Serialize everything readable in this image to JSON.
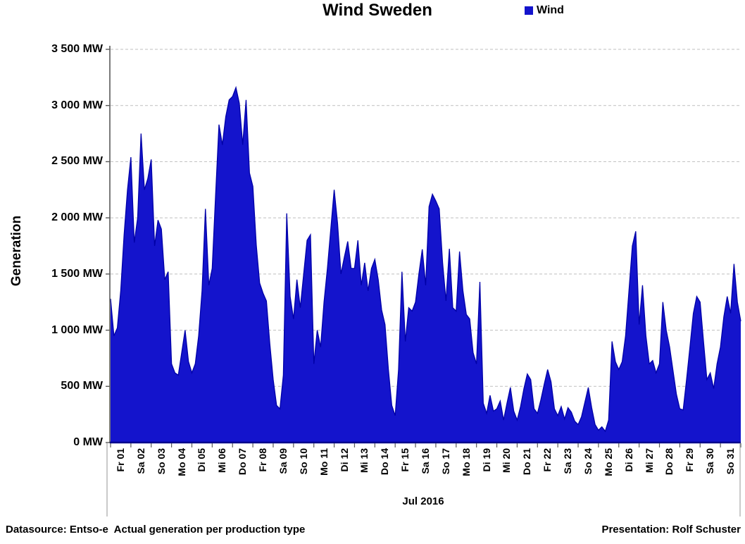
{
  "header": {
    "title": "Wind Sweden"
  },
  "legend": {
    "items": [
      {
        "label": "Wind",
        "color": "#1414CC"
      }
    ]
  },
  "chart_data": {
    "type": "area",
    "title": "Wind Sweden",
    "series": [
      {
        "name": "Wind",
        "color": "#1414CC"
      }
    ],
    "ylabel": "Generation",
    "xlabel": "",
    "unit": "MW",
    "ylim": [
      0,
      3500
    ],
    "y_tick_step": 500,
    "y_tick_labels": [
      "0 MW",
      "500 MW",
      "1 000 MW",
      "1 500 MW",
      "2 000 MW",
      "2 500 MW",
      "3 000 MW",
      "3 500 MW"
    ],
    "x_categories": [
      "Fr 01",
      "Sa 02",
      "So 03",
      "Mo 04",
      "Di 05",
      "Mi 06",
      "Do 07",
      "Fr 08",
      "Sa 09",
      "So 10",
      "Mo 11",
      "Di 12",
      "Mi 13",
      "Do 14",
      "Fr 15",
      "Sa 16",
      "So 17",
      "Mo 18",
      "Di 19",
      "Mi 20",
      "Do 21",
      "Fr 22",
      "Sa 23",
      "So 24",
      "Mo 25",
      "Di 26",
      "Mi 27",
      "Do 28",
      "Fr 29",
      "Sa 30",
      "So 31"
    ],
    "x_axis_group_label": "Jul 2016",
    "grid": "horizontal-dashed",
    "legend_position": "top-right",
    "sampling_hours_per_point": 4,
    "values_mw": [
      1280,
      950,
      1020,
      1350,
      1850,
      2250,
      2540,
      1780,
      2000,
      2750,
      2250,
      2350,
      2520,
      1750,
      1980,
      1900,
      1450,
      1520,
      700,
      620,
      600,
      800,
      1000,
      720,
      620,
      700,
      950,
      1350,
      2080,
      1400,
      1550,
      2200,
      2830,
      2650,
      2900,
      3050,
      3080,
      3160,
      3020,
      2650,
      3050,
      2400,
      2280,
      1760,
      1420,
      1330,
      1260,
      880,
      560,
      330,
      300,
      600,
      2040,
      1300,
      1100,
      1450,
      1200,
      1500,
      1800,
      1850,
      700,
      1000,
      850,
      1250,
      1550,
      1900,
      2250,
      1950,
      1500,
      1650,
      1790,
      1550,
      1550,
      1800,
      1400,
      1600,
      1350,
      1550,
      1630,
      1450,
      1180,
      1050,
      650,
      330,
      240,
      650,
      1520,
      900,
      1200,
      1170,
      1250,
      1500,
      1720,
      1400,
      2100,
      2210,
      2150,
      2080,
      1600,
      1260,
      1725,
      1200,
      1170,
      1700,
      1350,
      1140,
      1100,
      800,
      700,
      1430,
      350,
      260,
      420,
      280,
      300,
      370,
      200,
      350,
      490,
      280,
      200,
      320,
      480,
      610,
      560,
      300,
      260,
      380,
      520,
      650,
      540,
      300,
      240,
      320,
      210,
      310,
      270,
      190,
      160,
      230,
      360,
      490,
      310,
      160,
      110,
      140,
      100,
      200,
      900,
      720,
      650,
      720,
      950,
      1350,
      1750,
      1880,
      1050,
      1400,
      950,
      700,
      730,
      620,
      700,
      1250,
      1000,
      850,
      640,
      430,
      300,
      290,
      560,
      850,
      1150,
      1300,
      1250,
      900,
      560,
      620,
      480,
      700,
      850,
      1120,
      1300,
      1150,
      1590,
      1250,
      1080
    ]
  },
  "footer": {
    "left": "Datasource: Entso-e  Actual generation per production type",
    "right": "Presentation: Rolf Schuster"
  },
  "colors": {
    "area_fill": "#1414CC",
    "area_stroke": "#0000A8",
    "x_axis_line": "#00008B",
    "y_axis_line": "#595959",
    "gridline": "#BFBFBF",
    "tick": "#595959",
    "separator": "#A6A6A6",
    "text": "#000000"
  }
}
